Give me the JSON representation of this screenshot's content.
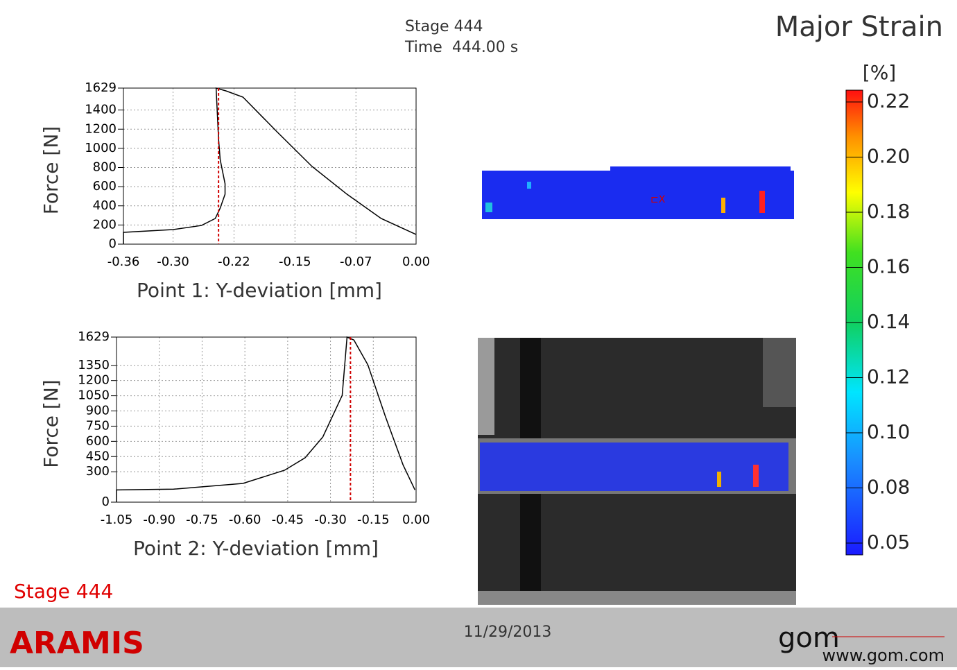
{
  "header": {
    "stage": "Stage 444",
    "time": "Time  444.00 s",
    "title": "Major Strain"
  },
  "chart_data": [
    {
      "type": "line",
      "ylabel": "Force [N]",
      "xlabel": "Point 1: Y-deviation [mm]",
      "xlim": [
        -0.36,
        0
      ],
      "ylim": [
        0,
        1629
      ],
      "xticks": [
        {
          "value": -0.36,
          "label": "-0.36"
        },
        {
          "value": -0.299,
          "label": "-0.30"
        },
        {
          "value": -0.224,
          "label": "-0.22"
        },
        {
          "value": -0.149,
          "label": "-0.15"
        },
        {
          "value": -0.074,
          "label": "-0.07"
        },
        {
          "value": 0,
          "label": "0.00"
        }
      ],
      "yticks": [
        0,
        200,
        400,
        600,
        800,
        1000,
        1200,
        1400,
        1629
      ],
      "grid": true,
      "color": "#000000",
      "x": [
        -0.36,
        -0.36,
        -0.299,
        -0.264,
        -0.247,
        -0.241,
        -0.235,
        -0.235,
        -0.241,
        -0.243,
        -0.246,
        -0.234,
        -0.213,
        -0.171,
        -0.128,
        -0.085,
        -0.043,
        0
      ],
      "values": [
        0,
        123,
        152,
        195,
        268,
        376,
        521,
        630,
        883,
        1100,
        1629,
        1600,
        1535,
        1172,
        811,
        521,
        268,
        101
      ],
      "cursor_x": -0.243,
      "cursor_color": "#d00000"
    },
    {
      "type": "line",
      "ylabel": "Force [N]",
      "xlabel": "Point 2: Y-deviation [mm]",
      "xlim": [
        -1.05,
        0
      ],
      "ylim": [
        0,
        1629
      ],
      "xticks": [
        {
          "value": -1.05,
          "label": "-1.05"
        },
        {
          "value": -0.9,
          "label": "-0.90"
        },
        {
          "value": -0.75,
          "label": "-0.75"
        },
        {
          "value": -0.6,
          "label": "-0.60"
        },
        {
          "value": -0.45,
          "label": "-0.45"
        },
        {
          "value": -0.3,
          "label": "-0.30"
        },
        {
          "value": -0.15,
          "label": "-0.15"
        },
        {
          "value": 0,
          "label": "0.00"
        }
      ],
      "yticks": [
        0,
        300,
        450,
        600,
        750,
        900,
        1050,
        1200,
        1350,
        1629
      ],
      "grid": true,
      "color": "#000000",
      "x": [
        -1.05,
        -1.05,
        -0.85,
        -0.607,
        -0.461,
        -0.389,
        -0.327,
        -0.259,
        -0.242,
        -0.218,
        -0.169,
        -0.108,
        -0.046,
        -0.004
      ],
      "values": [
        0,
        121,
        128,
        185,
        315,
        438,
        643,
        1054,
        1629,
        1600,
        1355,
        849,
        370,
        121
      ],
      "cursor_x": -0.23,
      "cursor_color": "#d00000"
    }
  ],
  "colorbar": {
    "unit": "[%]",
    "labels": [
      "0.22",
      "0.20",
      "0.18",
      "0.16",
      "0.14",
      "0.12",
      "0.10",
      "0.08",
      "0.05"
    ]
  },
  "stage_label": "Stage 444",
  "footer": {
    "product": "ARAMIS",
    "date": "11/29/2013",
    "logo": "gom",
    "url": "www.gom.com"
  }
}
